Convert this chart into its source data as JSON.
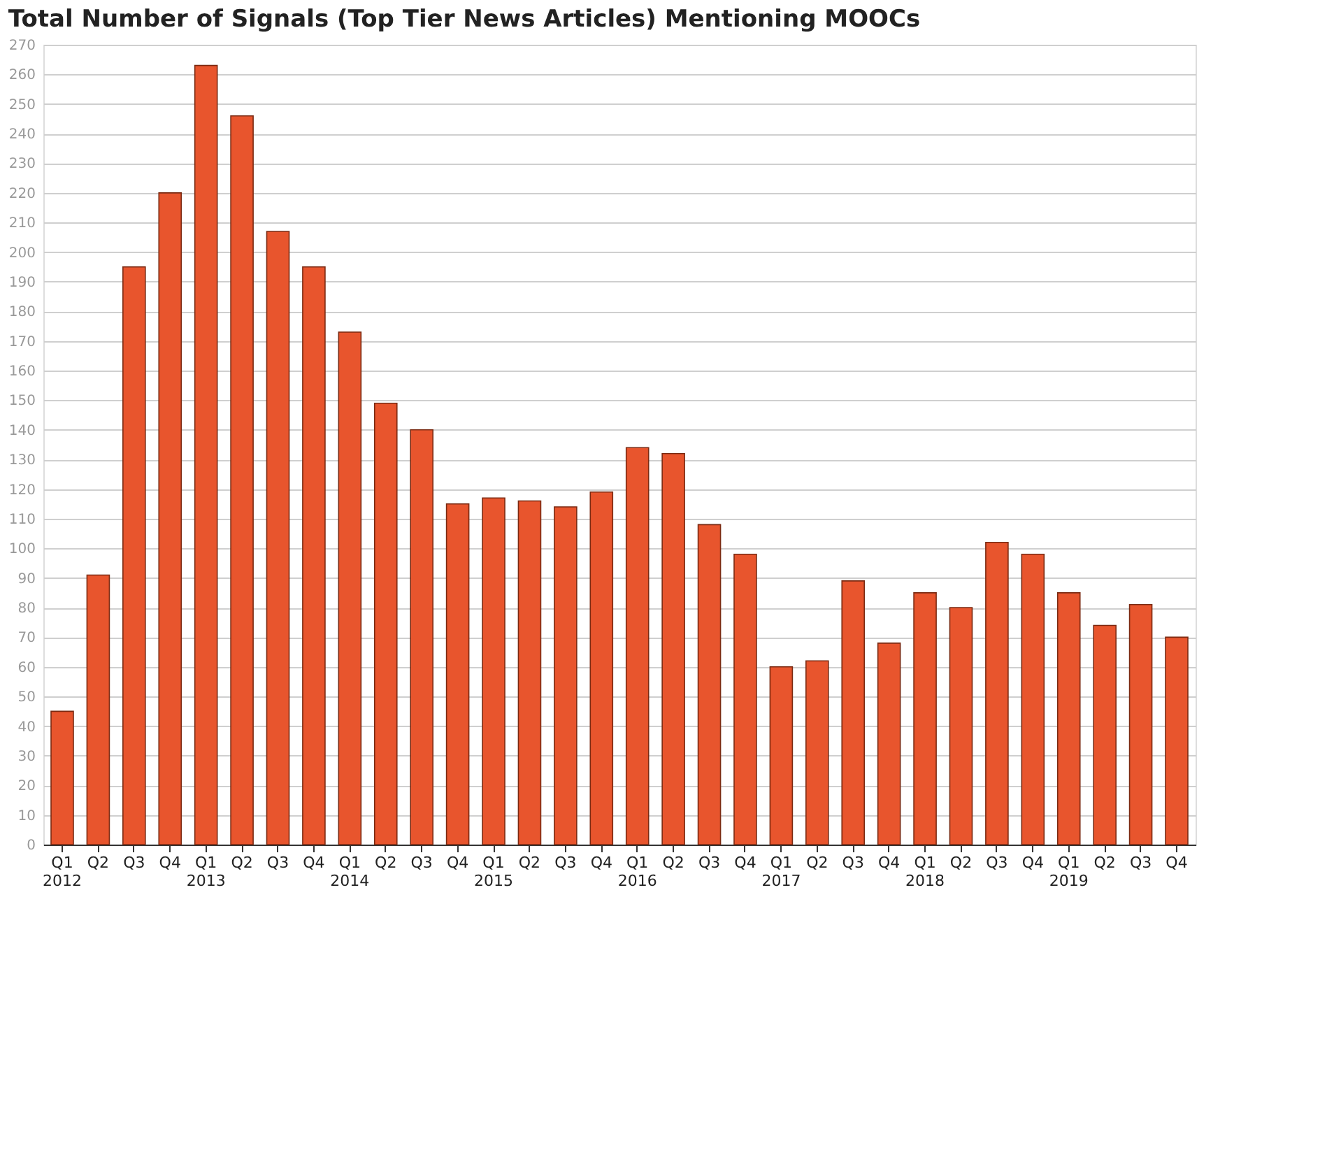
{
  "chart_data": {
    "type": "bar",
    "title": "Total Number of Signals (Top Tier News Articles) Mentioning MOOCs",
    "categories": [
      "Q1\n2012",
      "Q2",
      "Q3",
      "Q4",
      "Q1\n2013",
      "Q2",
      "Q3",
      "Q4",
      "Q1\n2014",
      "Q2",
      "Q3",
      "Q4",
      "Q1\n2015",
      "Q2",
      "Q3",
      "Q4",
      "Q1\n2016",
      "Q2",
      "Q3",
      "Q4",
      "Q1\n2017",
      "Q2",
      "Q3",
      "Q4",
      "Q1\n2018",
      "Q2",
      "Q3",
      "Q4",
      "Q1\n2019",
      "Q2",
      "Q3",
      "Q4"
    ],
    "values": [
      45,
      91,
      195,
      220,
      263,
      246,
      207,
      195,
      173,
      149,
      140,
      115,
      117,
      116,
      114,
      119,
      134,
      132,
      108,
      98,
      60,
      62,
      89,
      68,
      85,
      80,
      102,
      98,
      85,
      74,
      81,
      70
    ],
    "color": "#e8552d",
    "ylim": [
      0,
      270
    ],
    "yticks": [
      0,
      10,
      20,
      30,
      40,
      50,
      60,
      70,
      80,
      90,
      100,
      110,
      120,
      130,
      140,
      150,
      160,
      170,
      180,
      190,
      200,
      210,
      220,
      230,
      240,
      250,
      260,
      270
    ],
    "grid": "y"
  }
}
